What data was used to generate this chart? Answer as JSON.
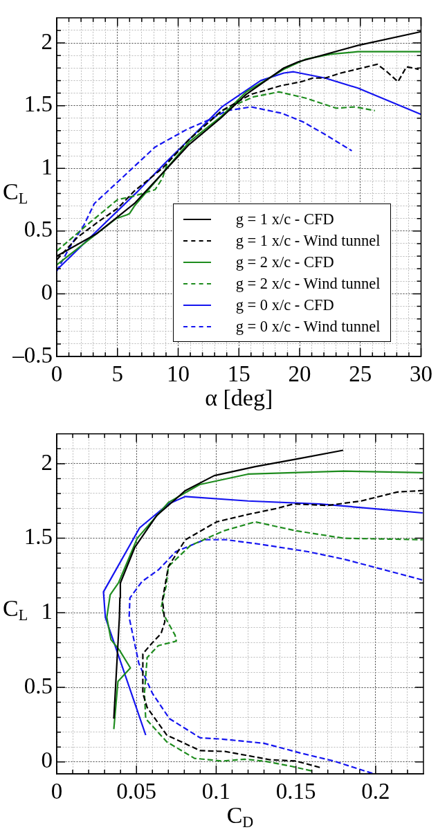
{
  "chart_data": [
    {
      "type": "line",
      "xlabel": "α [deg]",
      "ylabel": "C$_{L}$",
      "xlim": [
        0,
        30
      ],
      "ylim": [
        -0.5,
        2.2
      ],
      "grid": true,
      "legend": "bottom right",
      "marker": "none",
      "xticks": [
        0,
        {
          "value": 1,
          "label": null
        },
        {
          "value": 2,
          "label": null
        },
        {
          "value": 3,
          "label": null
        },
        {
          "value": 4,
          "label": null
        },
        5,
        {
          "value": 6,
          "label": null
        },
        {
          "value": 7,
          "label": null
        },
        {
          "value": 8,
          "label": null
        },
        {
          "value": 9,
          "label": null
        },
        10,
        {
          "value": 11,
          "label": null
        },
        {
          "value": 12,
          "label": null
        },
        {
          "value": 13,
          "label": null
        },
        {
          "value": 14,
          "label": null
        },
        15,
        {
          "value": 16,
          "label": null
        },
        {
          "value": 17,
          "label": null
        },
        {
          "value": 18,
          "label": null
        },
        {
          "value": 19,
          "label": null
        },
        20,
        {
          "value": 21,
          "label": null
        },
        {
          "value": 22,
          "label": null
        },
        {
          "value": 23,
          "label": null
        },
        {
          "value": 24,
          "label": null
        },
        25,
        {
          "value": 26,
          "label": null
        },
        {
          "value": 27,
          "label": null
        },
        {
          "value": 28,
          "label": null
        },
        {
          "value": 29,
          "label": null
        },
        30
      ],
      "yticks": [
        {
          "value": -0.5,
          "label": "–0.5"
        },
        {
          "value": -0.4,
          "label": null
        },
        {
          "value": -0.3,
          "label": null
        },
        {
          "value": -0.2,
          "label": null
        },
        {
          "value": -0.1,
          "label": null
        },
        0,
        {
          "value": 0.1,
          "label": null
        },
        {
          "value": 0.2,
          "label": null
        },
        {
          "value": 0.3,
          "label": null
        },
        {
          "value": 0.4,
          "label": null
        },
        0.5,
        {
          "value": 0.6,
          "label": null
        },
        {
          "value": 0.7,
          "label": null
        },
        {
          "value": 0.8,
          "label": null
        },
        {
          "value": 0.9,
          "label": null
        },
        1,
        {
          "value": 1.1,
          "label": null
        },
        {
          "value": 1.2,
          "label": null
        },
        {
          "value": 1.3,
          "label": null
        },
        {
          "value": 1.4,
          "label": null
        },
        1.5,
        {
          "value": 1.6,
          "label": null
        },
        {
          "value": 1.7,
          "label": null
        },
        {
          "value": 1.8,
          "label": null
        },
        {
          "value": 1.9,
          "label": null
        },
        2,
        {
          "value": 2.1,
          "label": null
        }
      ],
      "series": [
        {
          "name": "g = 1 x/c - CFD",
          "color": "#000000",
          "line_style": "solid",
          "x": [
            0,
            3.3,
            6.4,
            8.7,
            10.9,
            13.5,
            15.6,
            18.7,
            19.9,
            24.8,
            30
          ],
          "values": [
            0.3,
            0.48,
            0.72,
            0.96,
            1.19,
            1.4,
            1.59,
            1.8,
            1.85,
            1.98,
            2.09
          ]
        },
        {
          "name": "g = 1 x/c - Wind tunnel",
          "color": "#000000",
          "line_style": "dashed",
          "x": [
            0,
            1.7,
            3.5,
            5,
            6.4,
            8.7,
            10.9,
            13.6,
            16,
            18.5,
            20.1,
            21.1,
            22.1,
            23.4,
            26.4,
            27.2,
            28.1,
            28.8,
            29.8
          ],
          "values": [
            0.27,
            0.45,
            0.58,
            0.68,
            0.82,
            1.0,
            1.23,
            1.46,
            1.59,
            1.66,
            1.69,
            1.72,
            1.72,
            1.76,
            1.83,
            1.77,
            1.69,
            1.81,
            1.79
          ]
        },
        {
          "name": "g = 2 x/c - CFD",
          "color": "#1e8c1e",
          "line_style": "solid",
          "x": [
            0,
            2.5,
            4.9,
            5.8,
            6.0,
            6.4,
            8.7,
            10.9,
            13.5,
            15.6,
            18.7,
            20.5,
            22.5,
            24.8,
            30
          ],
          "values": [
            0.23,
            0.42,
            0.6,
            0.63,
            0.64,
            0.7,
            0.96,
            1.21,
            1.41,
            1.61,
            1.79,
            1.87,
            1.91,
            1.93,
            1.93
          ]
        },
        {
          "name": "g = 2 x/c - Wind tunnel",
          "color": "#1e8c1e",
          "line_style": "dashed",
          "x": [
            0,
            2.5,
            5,
            6.4,
            8.1,
            8.7,
            9.1,
            10.9,
            13.6,
            16.2,
            18.3,
            20.5,
            23,
            24.6,
            26.2
          ],
          "values": [
            0.34,
            0.55,
            0.75,
            0.78,
            0.83,
            0.92,
            1.04,
            1.23,
            1.46,
            1.57,
            1.61,
            1.56,
            1.48,
            1.49,
            1.46
          ]
        },
        {
          "name": "g = 0 x/c - CFD",
          "color": "#1414f0",
          "line_style": "solid",
          "x": [
            0,
            3.3,
            6.6,
            8.9,
            10.9,
            13.6,
            16.8,
            18.7,
            19.5,
            22.1,
            24.8,
            30
          ],
          "values": [
            0.19,
            0.5,
            0.81,
            1.04,
            1.23,
            1.49,
            1.7,
            1.76,
            1.77,
            1.72,
            1.64,
            1.43
          ]
        },
        {
          "name": "g = 0 x/c - Wind tunnel",
          "color": "#1414f0",
          "line_style": "dashed",
          "x": [
            0,
            1,
            2.25,
            3.1,
            5,
            8.1,
            10.7,
            12.6,
            14,
            16,
            18.5,
            20.3,
            22.1,
            24.3
          ],
          "values": [
            0.18,
            0.36,
            0.55,
            0.72,
            0.89,
            1.17,
            1.31,
            1.39,
            1.46,
            1.49,
            1.44,
            1.37,
            1.27,
            1.14
          ]
        }
      ]
    },
    {
      "type": "line",
      "xlabel": "C$_{D}$",
      "ylabel": "C$_{L}$",
      "xlim": [
        0,
        0.23
      ],
      "ylim": [
        -0.08,
        2.2
      ],
      "grid": true,
      "legend": false,
      "marker": "none",
      "xticks": [
        0,
        {
          "value": 0.01,
          "label": null
        },
        {
          "value": 0.02,
          "label": null
        },
        {
          "value": 0.03,
          "label": null
        },
        {
          "value": 0.04,
          "label": null
        },
        0.05,
        {
          "value": 0.06,
          "label": null
        },
        {
          "value": 0.07,
          "label": null
        },
        {
          "value": 0.08,
          "label": null
        },
        {
          "value": 0.09,
          "label": null
        },
        0.1,
        {
          "value": 0.11,
          "label": null
        },
        {
          "value": 0.12,
          "label": null
        },
        {
          "value": 0.13,
          "label": null
        },
        {
          "value": 0.14,
          "label": null
        },
        0.15,
        {
          "value": 0.16,
          "label": null
        },
        {
          "value": 0.17,
          "label": null
        },
        {
          "value": 0.18,
          "label": null
        },
        {
          "value": 0.19,
          "label": null
        },
        0.2,
        {
          "value": 0.21,
          "label": null
        },
        {
          "value": 0.22,
          "label": null
        }
      ],
      "yticks": [
        0,
        {
          "value": 0.1,
          "label": null
        },
        {
          "value": 0.2,
          "label": null
        },
        {
          "value": 0.3,
          "label": null
        },
        {
          "value": 0.4,
          "label": null
        },
        0.5,
        {
          "value": 0.6,
          "label": null
        },
        {
          "value": 0.7,
          "label": null
        },
        {
          "value": 0.8,
          "label": null
        },
        {
          "value": 0.9,
          "label": null
        },
        1,
        {
          "value": 1.1,
          "label": null
        },
        {
          "value": 1.2,
          "label": null
        },
        {
          "value": 1.3,
          "label": null
        },
        {
          "value": 1.4,
          "label": null
        },
        1.5,
        {
          "value": 1.6,
          "label": null
        },
        {
          "value": 1.7,
          "label": null
        },
        {
          "value": 1.8,
          "label": null
        },
        {
          "value": 1.9,
          "label": null
        },
        2,
        {
          "value": 2.1,
          "label": null
        }
      ],
      "series": [
        {
          "color": "#000000",
          "line_style": "solid",
          "x": [
            0.0358,
            0.0393,
            0.0396,
            0.0399,
            0.049,
            0.0625,
            0.0807,
            0.0988,
            0.1245,
            0.15,
            0.1796
          ],
          "values": [
            0.29,
            0.97,
            1.1,
            1.2,
            1.44,
            1.65,
            1.82,
            1.92,
            1.98,
            2.03,
            2.09
          ]
        },
        {
          "color": "#000000",
          "line_style": "dashed",
          "x": [
            0.165,
            0.15,
            0.1335,
            0.121,
            0.1056,
            0.0899,
            0.069,
            0.0567,
            0.054,
            0.054,
            0.06,
            0.0654,
            0.0678,
            0.0663,
            0.07,
            0.0807,
            0.1003,
            0.12,
            0.138,
            0.1486,
            0.1698,
            0.191,
            0.2136,
            0.2295
          ],
          "values": [
            -0.037,
            0.006,
            0.015,
            0.04,
            0.07,
            0.076,
            0.18,
            0.365,
            0.46,
            0.725,
            0.8,
            0.86,
            0.94,
            1.085,
            1.31,
            1.49,
            1.61,
            1.66,
            1.7,
            1.73,
            1.72,
            1.75,
            1.81,
            1.82
          ]
        },
        {
          "color": "#1e8c1e",
          "line_style": "solid",
          "x": [
            0.0358,
            0.0384,
            0.0462,
            0.0393,
            0.034,
            0.0314,
            0.0335,
            0.0387,
            0.0505,
            0.07,
            0.0897,
            0.12,
            0.18,
            0.2295
          ],
          "values": [
            0.22,
            0.54,
            0.63,
            0.75,
            0.82,
            0.97,
            1.12,
            1.2,
            1.5,
            1.74,
            1.86,
            1.93,
            1.95,
            1.94
          ]
        },
        {
          "color": "#1e8c1e",
          "line_style": "dashed",
          "x": [
            0.1597,
            0.1475,
            0.13,
            0.1178,
            0.1038,
            0.0864,
            0.069,
            0.0558,
            0.055,
            0.0567,
            0.0637,
            0.075,
            0.0742,
            0.068,
            0.0656,
            0.0686,
            0.07,
            0.0837,
            0.1048,
            0.1245,
            0.15,
            0.18,
            0.2295
          ],
          "values": [
            -0.06,
            -0.03,
            0.006,
            0.018,
            0.006,
            0.024,
            0.135,
            0.29,
            0.46,
            0.7,
            0.78,
            0.81,
            0.85,
            0.97,
            1.04,
            1.18,
            1.31,
            1.45,
            1.55,
            1.61,
            1.55,
            1.5,
            1.49
          ]
        },
        {
          "color": "#1414f0",
          "line_style": "solid",
          "x": [
            0.0558,
            0.0305,
            0.0293,
            0.052,
            0.07,
            0.0807,
            0.12,
            0.165,
            0.2295
          ],
          "values": [
            0.18,
            0.97,
            1.14,
            1.57,
            1.73,
            1.78,
            1.75,
            1.73,
            1.67
          ]
        },
        {
          "color": "#1414f0",
          "line_style": "dashed",
          "x": [
            0.198,
            0.1737,
            0.1527,
            0.13,
            0.1038,
            0.0899,
            0.0707,
            0.06,
            0.0515,
            0.0454,
            0.0459,
            0.0535,
            0.064,
            0.0746,
            0.0927,
            0.1063,
            0.1275,
            0.1576,
            0.18,
            0.2295
          ],
          "values": [
            -0.077,
            0.006,
            0.06,
            0.125,
            0.153,
            0.162,
            0.29,
            0.46,
            0.66,
            0.97,
            1.1,
            1.21,
            1.29,
            1.41,
            1.49,
            1.49,
            1.46,
            1.41,
            1.36,
            1.22
          ]
        }
      ]
    }
  ]
}
